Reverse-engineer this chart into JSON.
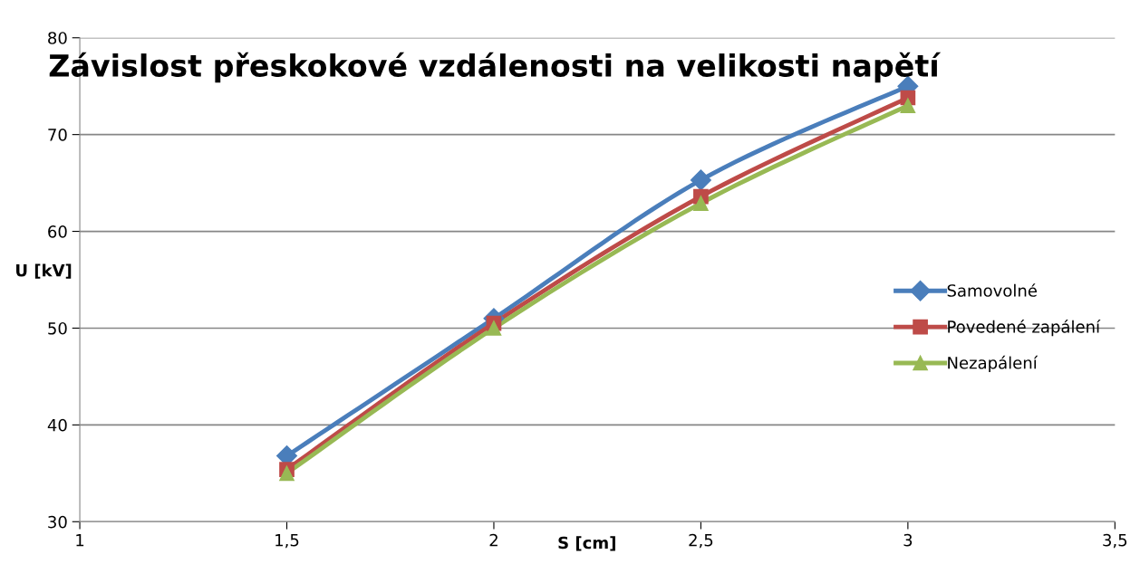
{
  "chart_data": {
    "type": "line",
    "title": "Závislost přeskokové vzdálenosti na velikosti napětí",
    "xlabel": "S [cm]",
    "ylabel": "U [kV]",
    "x": [
      1.5,
      2,
      2.5,
      3
    ],
    "series": [
      {
        "name": "Samovolné",
        "color": "#4a7ebb",
        "marker": "diamond",
        "values": [
          36.8,
          51.0,
          65.3,
          75.0
        ]
      },
      {
        "name": "Povedené zapálení",
        "color": "#be4b48",
        "marker": "square",
        "values": [
          35.4,
          50.5,
          63.6,
          73.8
        ]
      },
      {
        "name": "Nezapálení",
        "color": "#98b954",
        "marker": "triangle",
        "values": [
          35.0,
          50.0,
          62.9,
          73.0
        ]
      }
    ],
    "xlim": [
      1,
      3.5
    ],
    "xticks": [
      1,
      {
        "value": 1.5,
        "label": "1,5"
      },
      2,
      {
        "value": 2.5,
        "label": "2,5"
      },
      3,
      {
        "value": 3.5,
        "label": "3,5"
      }
    ],
    "ylim": [
      30,
      80
    ],
    "yticks": [
      30,
      40,
      50,
      60,
      70,
      80
    ],
    "grid": "y",
    "legend": "right",
    "line_style": "solid"
  }
}
